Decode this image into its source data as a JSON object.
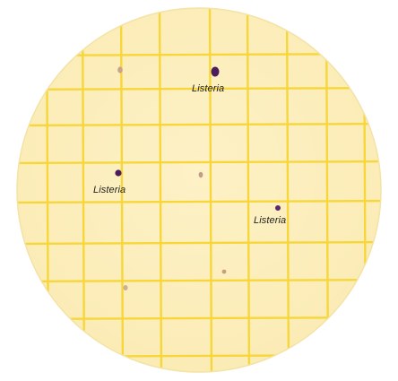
{
  "plate": {
    "background_color": "#fcefc0",
    "grid_color": "#f8d93a"
  },
  "colonies": {
    "target_color": "#4b1d5c",
    "other_color": "#c9a88a"
  },
  "labels": [
    {
      "text": "Listeria"
    },
    {
      "text": "Listeria"
    },
    {
      "text": "Listeria"
    }
  ]
}
